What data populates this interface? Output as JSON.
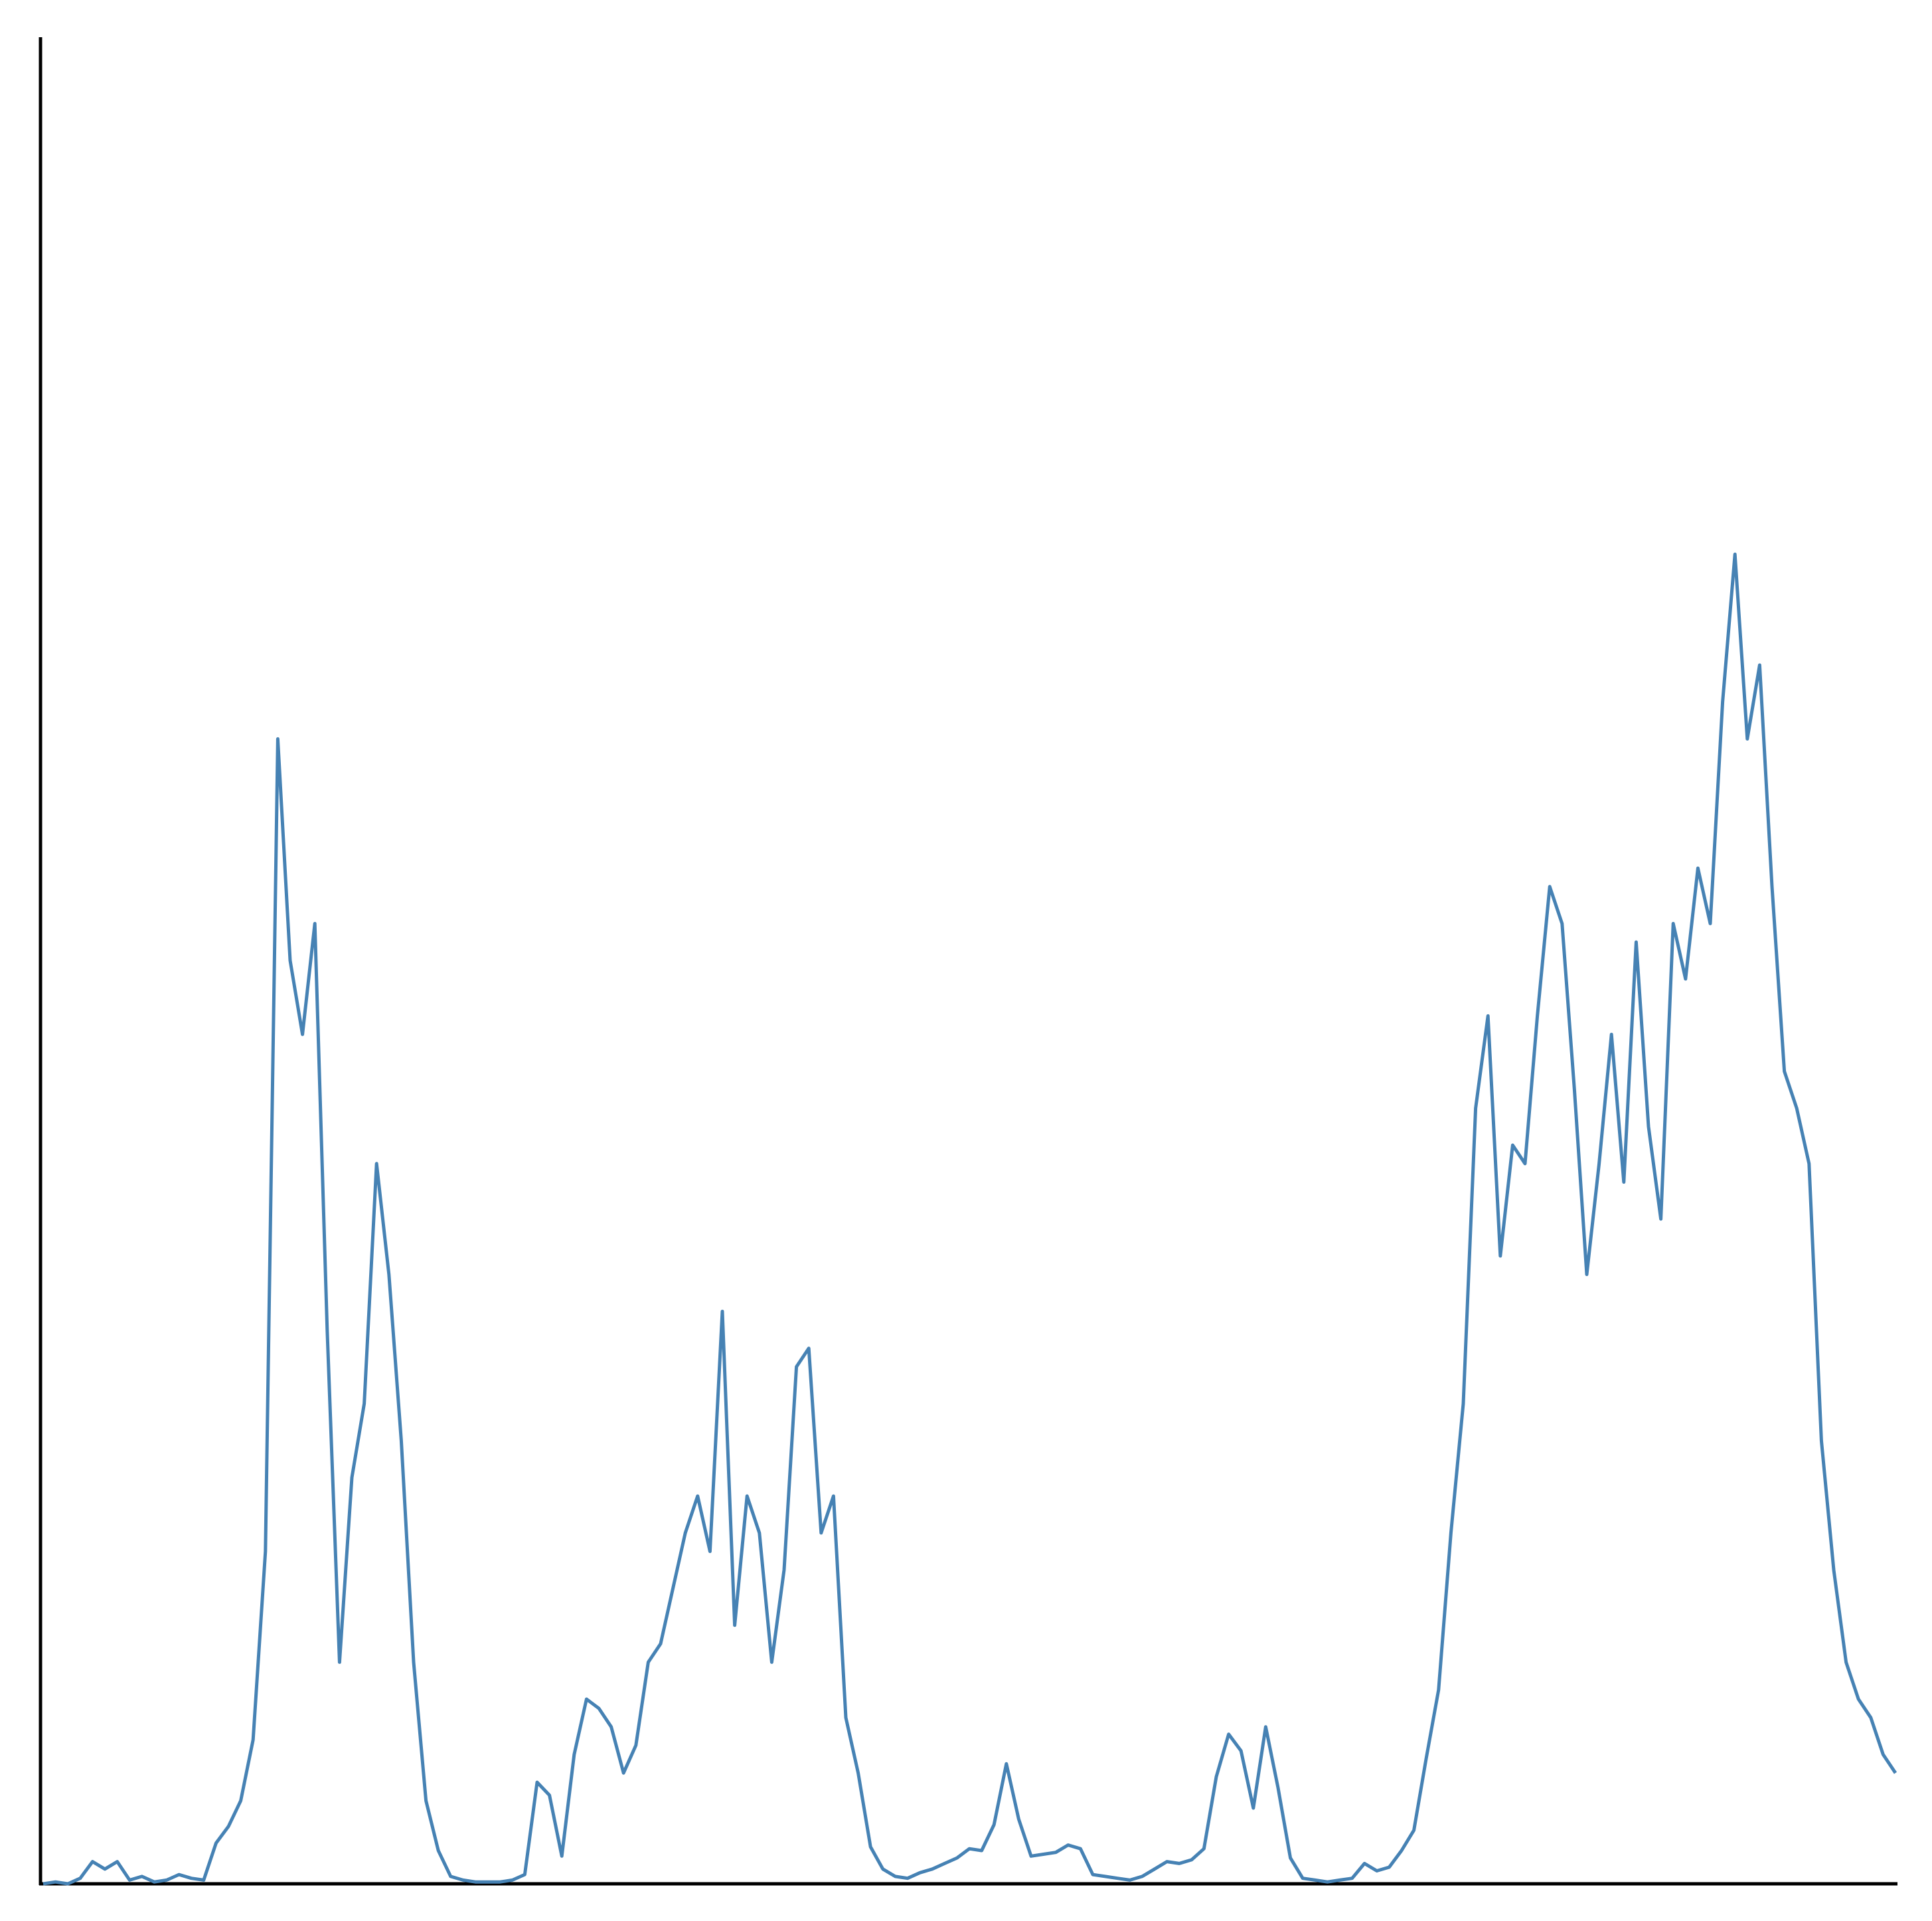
{
  "chart_data": {
    "type": "line",
    "color": "#4682b4",
    "grid": false,
    "ylim": [
      0,
      100
    ],
    "values": [
      0,
      0.1,
      0,
      0.3,
      1.2,
      0.8,
      1.2,
      0.2,
      0.4,
      0.1,
      0.2,
      0.5,
      0.3,
      0.2,
      2.2,
      3.1,
      4.5,
      7.8,
      18,
      62,
      50,
      46,
      52,
      30,
      12,
      22,
      26,
      39,
      33,
      24,
      12,
      4.5,
      1.8,
      0.4,
      0.2,
      0.1,
      0.1,
      0.1,
      0.2,
      0.5,
      5.5,
      4.8,
      1.5,
      7,
      10,
      9.5,
      8.5,
      6,
      7.5,
      12,
      13,
      16,
      19,
      21,
      18,
      31,
      14,
      21,
      19,
      12,
      17,
      28,
      29,
      19,
      21,
      9,
      6,
      2,
      0.8,
      0.4,
      0.3,
      0.6,
      0.8,
      1.1,
      1.4,
      1.9,
      1.8,
      3.2,
      6.5,
      3.5,
      1.5,
      1.6,
      1.7,
      2.1,
      1.9,
      0.5,
      0.4,
      0.3,
      0.2,
      0.4,
      0.8,
      1.2,
      1.1,
      1.3,
      1.9,
      5.8,
      8.1,
      7.2,
      4.1,
      8.5,
      5.2,
      1.4,
      0.3,
      0.2,
      0.1,
      0.2,
      0.3,
      1.1,
      0.7,
      0.9,
      1.8,
      2.9,
      6.8,
      10.5,
      19,
      26,
      42,
      47,
      34,
      40,
      39,
      47,
      54,
      52,
      43,
      33,
      39,
      46,
      38,
      51,
      41,
      36,
      52,
      49,
      55,
      52,
      64,
      72,
      62,
      66,
      54,
      44,
      42,
      39,
      24,
      17,
      12,
      10,
      9,
      7,
      6
    ]
  }
}
